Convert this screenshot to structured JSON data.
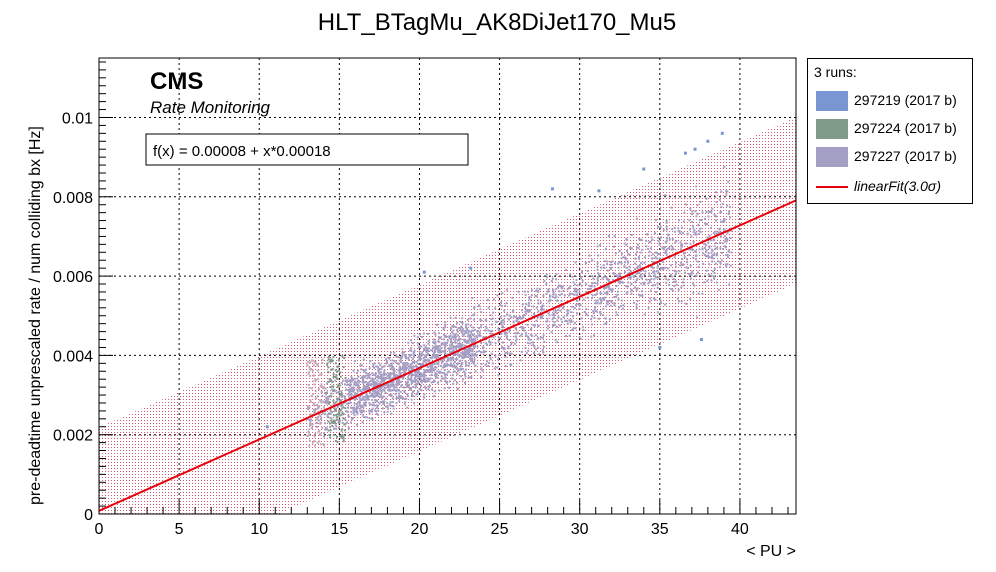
{
  "chart_data": {
    "type": "scatter",
    "title": "HLT_BTagMu_AK8DiJet170_Mu5",
    "xlabel": "< PU >",
    "ylabel": "pre-deadtime unprescaled rate / num colliding bx [Hz]",
    "xlim": [
      0,
      43.5
    ],
    "ylim": [
      0,
      0.0115
    ],
    "x_ticks": [
      "0",
      "5",
      "10",
      "15",
      "20",
      "25",
      "30",
      "35",
      "40"
    ],
    "y_ticks": [
      "0",
      "0.002",
      "0.004",
      "0.006",
      "0.008",
      "0.01"
    ],
    "grid": true,
    "legend_position": "right",
    "watermark": {
      "experiment": "CMS",
      "subtitle": "Rate Monitoring"
    },
    "fit_box": "f(x) = 0.00008 + x*0.00018",
    "legend": {
      "header": "3 runs:",
      "entries": [
        {
          "name": "297219 (2017 b)",
          "color": "#7a96d2"
        },
        {
          "name": "297224 (2017 b)",
          "color": "#7f9a87"
        },
        {
          "name": "297227 (2017 b)",
          "color": "#a39fc5"
        },
        {
          "name": "linearFit(3.0σ)",
          "color": "#e8000b"
        }
      ]
    },
    "fit": {
      "intercept": 8e-05,
      "slope": 0.00018,
      "band_halfwidth": 0.0021,
      "x_range": [
        0,
        43.5
      ],
      "color": "#e8000b"
    },
    "series": [
      {
        "name": "297219 (2017 b)",
        "color": "#7a96d2",
        "points": [
          [
            28.3,
            0.0082
          ],
          [
            31.2,
            0.00815
          ],
          [
            34.0,
            0.0087
          ],
          [
            35.0,
            0.0042
          ],
          [
            36.6,
            0.0091
          ],
          [
            37.2,
            0.0092
          ],
          [
            37.6,
            0.0044
          ],
          [
            38.0,
            0.0094
          ],
          [
            38.9,
            0.0096
          ],
          [
            20.3,
            0.0061
          ],
          [
            23.2,
            0.0062
          ],
          [
            10.5,
            0.0022
          ]
        ]
      },
      {
        "name": "297224 (2017 b)",
        "color": "#7f9a87",
        "cluster": {
          "x_range": [
            14.2,
            15.4
          ],
          "y_range": [
            0.0018,
            0.004
          ],
          "count": 110
        }
      },
      {
        "name": "297227 (2017 b)",
        "color": "#a39fc5",
        "cluster_main": {
          "x_range": [
            13.0,
            39.5
          ],
          "y_at_x": "fit",
          "y_spread": 0.0011,
          "count": 2600
        }
      }
    ]
  }
}
